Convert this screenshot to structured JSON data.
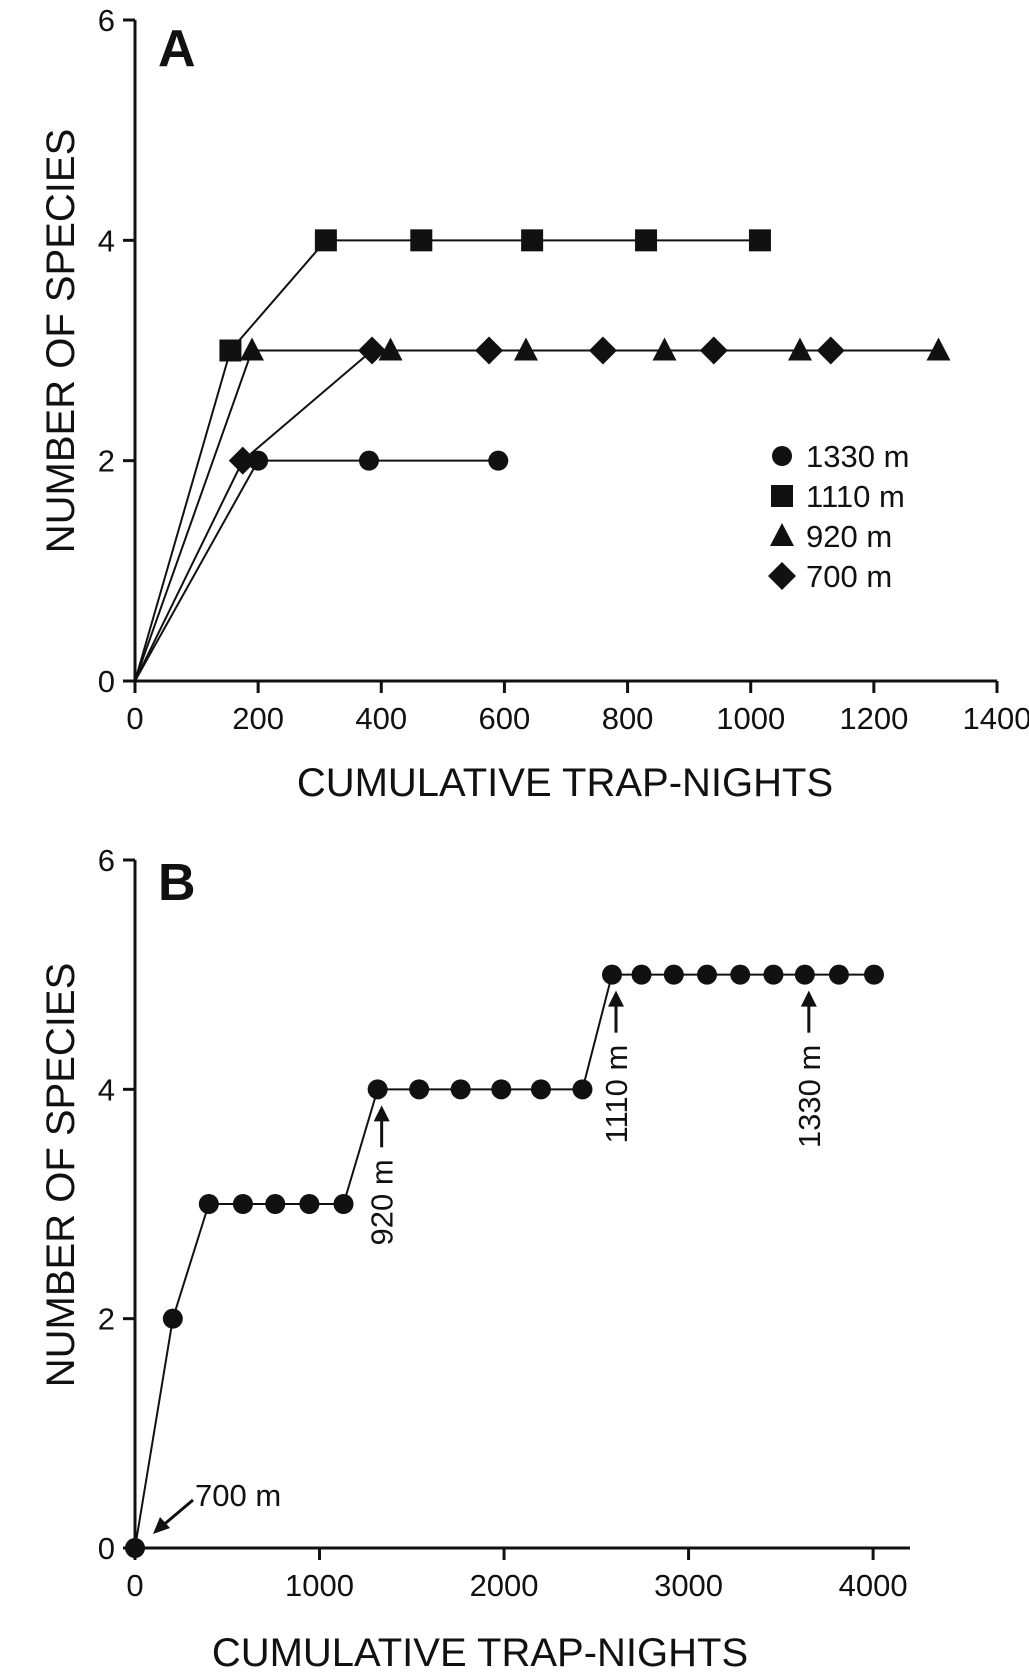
{
  "chart_data": [
    {
      "panel": "A",
      "type": "line",
      "xlabel": "CUMULATIVE TRAP-NIGHTS",
      "ylabel": "NUMBER OF SPECIES",
      "xlim": [
        0,
        1400
      ],
      "ylim": [
        0,
        6
      ],
      "xticks": [
        0,
        200,
        400,
        600,
        800,
        1000,
        1200,
        1400
      ],
      "yticks": [
        0,
        2,
        4,
        6
      ],
      "grid": false,
      "legend_position": "right",
      "series": [
        {
          "name": "1330 m",
          "marker": "circle",
          "x": [
            0,
            200,
            380,
            590
          ],
          "y": [
            0,
            2,
            2,
            2
          ]
        },
        {
          "name": "1110 m",
          "marker": "square",
          "x": [
            0,
            155,
            310,
            465,
            645,
            830,
            1015
          ],
          "y": [
            0,
            3,
            4,
            4,
            4,
            4,
            4
          ]
        },
        {
          "name": "920 m",
          "marker": "triangle",
          "x": [
            0,
            190,
            415,
            635,
            860,
            1080,
            1305
          ],
          "y": [
            0,
            3,
            3,
            3,
            3,
            3,
            3
          ]
        },
        {
          "name": "700 m",
          "marker": "diamond",
          "x": [
            0,
            175,
            385,
            575,
            760,
            940,
            1130
          ],
          "y": [
            0,
            2,
            3,
            3,
            3,
            3,
            3
          ]
        }
      ]
    },
    {
      "panel": "B",
      "type": "line",
      "xlabel": "CUMULATIVE TRAP-NIGHTS",
      "ylabel": "NUMBER OF SPECIES",
      "xlim": [
        0,
        4200
      ],
      "ylim": [
        0,
        6
      ],
      "xticks": [
        0,
        1000,
        2000,
        3000,
        4000
      ],
      "yticks": [
        0,
        2,
        4,
        6
      ],
      "grid": false,
      "series": [
        {
          "marker": "circle",
          "x": [
            0,
            205,
            400,
            585,
            760,
            945,
            1130,
            1315,
            1540,
            1765,
            1985,
            2200,
            2425,
            2585,
            2745,
            2920,
            3100,
            3280,
            3460,
            3630,
            3815,
            4005
          ],
          "y": [
            0,
            2,
            3,
            3,
            3,
            3,
            3,
            4,
            4,
            4,
            4,
            4,
            4,
            5,
            5,
            5,
            5,
            5,
            5,
            5,
            5,
            5
          ]
        }
      ],
      "annotations": [
        {
          "text": "700 m",
          "x": 0,
          "y": 0
        },
        {
          "text": "920 m",
          "x": 1315,
          "y": 4
        },
        {
          "text": "1110 m",
          "x": 2585,
          "y": 5
        },
        {
          "text": "1330 m",
          "x": 3630,
          "y": 5
        }
      ]
    }
  ]
}
